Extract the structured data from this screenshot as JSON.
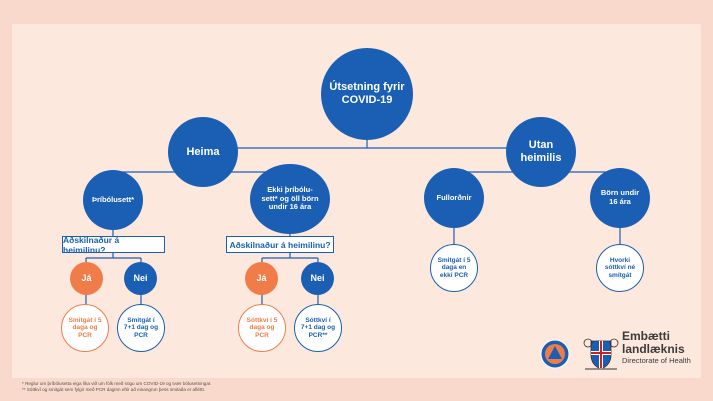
{
  "root": "Útsetning fyrir COVID-19",
  "level1": {
    "left": "Heima",
    "right": "Utan heimilis"
  },
  "level2": {
    "vaccinated": "Þríbólusett*",
    "unvaccinated": "Ekki þríbólu-sett* og öll börn undir 16 ára",
    "adults": "Fullorðnir",
    "children": "Börn undir 16 ára"
  },
  "question": "Aðskilnaður á heimilinu?",
  "yes": "Já",
  "no": "Nei",
  "outcomes": {
    "vacc_yes": "Smitgát í 5 daga og PCR",
    "vacc_no": "Smitgát í 7+1 dag og PCR",
    "unvacc_yes": "Sóttkví í 5 daga og PCR",
    "unvacc_no": "Sóttkví í 7+1 dag og PCR**",
    "adults": "Smitgát í 5 daga en ekki PCR",
    "children": "Hvorki sóttkví né smitgát"
  },
  "footnotes": [
    "* Reglur um þríbólusetta eiga líka við um fólk með sögu um COVID-19 og tvær bólusetningar.",
    "** Sóttkví og smitgát sem fylgir með PCR daginn eftir að einangrun þess smitaða er afléttt."
  ],
  "logo": {
    "line1": "Embætti",
    "line2": "landlæknis",
    "line3": "Directorate of Health"
  },
  "colors": {
    "blue": "#1a5fb4",
    "orange": "#f07c4a",
    "background": "#fde8de"
  }
}
